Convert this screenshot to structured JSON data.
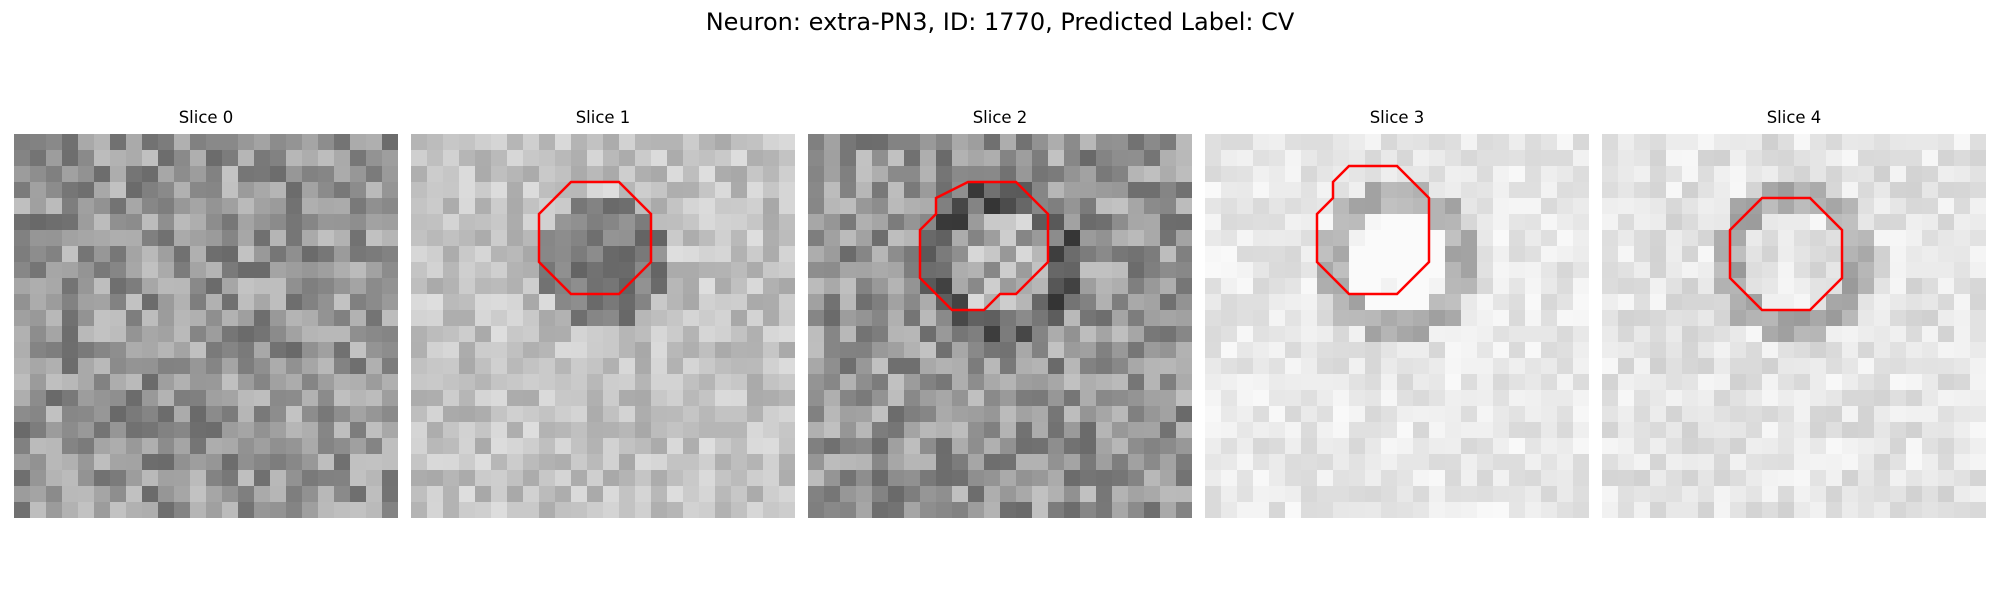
{
  "figure": {
    "title": "Neuron: extra-PN3, ID: 1770, Predicted Label: CV"
  },
  "contour_color": "#ff0000",
  "panels": [
    {
      "title": "Slice 0",
      "base_gray": 150,
      "spread": 90,
      "ring": false,
      "blob": "none",
      "seed": 11,
      "contour": []
    },
    {
      "title": "Slice 1",
      "base_gray": 195,
      "spread": 55,
      "ring": false,
      "blob": "dark",
      "seed": 23,
      "contour": [
        [
          10,
          3
        ],
        [
          13,
          3
        ],
        [
          15,
          5
        ],
        [
          15,
          8
        ],
        [
          13,
          10
        ],
        [
          10,
          10
        ],
        [
          8,
          8
        ],
        [
          8,
          5
        ]
      ]
    },
    {
      "title": "Slice 2",
      "base_gray": 150,
      "spread": 90,
      "ring": true,
      "blob": "light",
      "seed": 37,
      "contour": [
        [
          10,
          3
        ],
        [
          13,
          3
        ],
        [
          15,
          5
        ],
        [
          15,
          8
        ],
        [
          13,
          10
        ],
        [
          12,
          10
        ],
        [
          11,
          11
        ],
        [
          9,
          11
        ],
        [
          7,
          9
        ],
        [
          7,
          6
        ],
        [
          8,
          5
        ],
        [
          8,
          4
        ]
      ]
    },
    {
      "title": "Slice 3",
      "base_gray": 232,
      "spread": 35,
      "ring": true,
      "blob": "light",
      "seed": 53,
      "contour": [
        [
          9,
          2
        ],
        [
          12,
          2
        ],
        [
          14,
          4
        ],
        [
          14,
          8
        ],
        [
          12,
          10
        ],
        [
          9,
          10
        ],
        [
          7,
          8
        ],
        [
          7,
          5
        ],
        [
          8,
          4
        ],
        [
          8,
          3
        ]
      ]
    },
    {
      "title": "Slice 4",
      "base_gray": 228,
      "spread": 40,
      "ring": true,
      "blob": "none",
      "seed": 71,
      "contour": [
        [
          10,
          4
        ],
        [
          13,
          4
        ],
        [
          15,
          6
        ],
        [
          15,
          9
        ],
        [
          13,
          11
        ],
        [
          10,
          11
        ],
        [
          8,
          9
        ],
        [
          8,
          6
        ]
      ]
    }
  ]
}
